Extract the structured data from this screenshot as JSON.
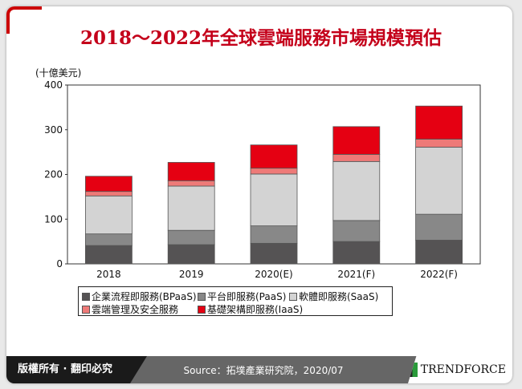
{
  "chart_data": {
    "type": "bar",
    "stacked": true,
    "title": "2018～2022年全球雲端服務市場規模預估",
    "ylabel": "(十億美元)",
    "ylim": [
      0,
      400
    ],
    "yticks": [
      0,
      100,
      200,
      300,
      400
    ],
    "grid": false,
    "legend_position": "bottom",
    "categories": [
      "2018",
      "2019",
      "2020(E)",
      "2021(F)",
      "2022(F)"
    ],
    "series": [
      {
        "name": "企業流程即服務(BPaaS)",
        "color": "#555354",
        "values": [
          41,
          43,
          46,
          50,
          53
        ]
      },
      {
        "name": "平台即服務(PaaS)",
        "color": "#888888",
        "values": [
          26,
          32,
          39,
          47,
          58
        ]
      },
      {
        "name": "軟體即服務(SaaS)",
        "color": "#d3d3d3",
        "values": [
          85,
          99,
          116,
          132,
          150
        ]
      },
      {
        "name": "雲端管理及安全服務",
        "color": "#ee7a78",
        "values": [
          10,
          12,
          13,
          16,
          18
        ]
      },
      {
        "name": "基礎架構即服務(IaaS)",
        "color": "#e50012",
        "values": [
          34,
          41,
          52,
          62,
          74
        ]
      }
    ]
  },
  "footer": {
    "rights": "版權所有 · 翻印必究",
    "source": "Source：拓墣產業研究院，2020/07",
    "brand": "TRENDFORCE"
  }
}
